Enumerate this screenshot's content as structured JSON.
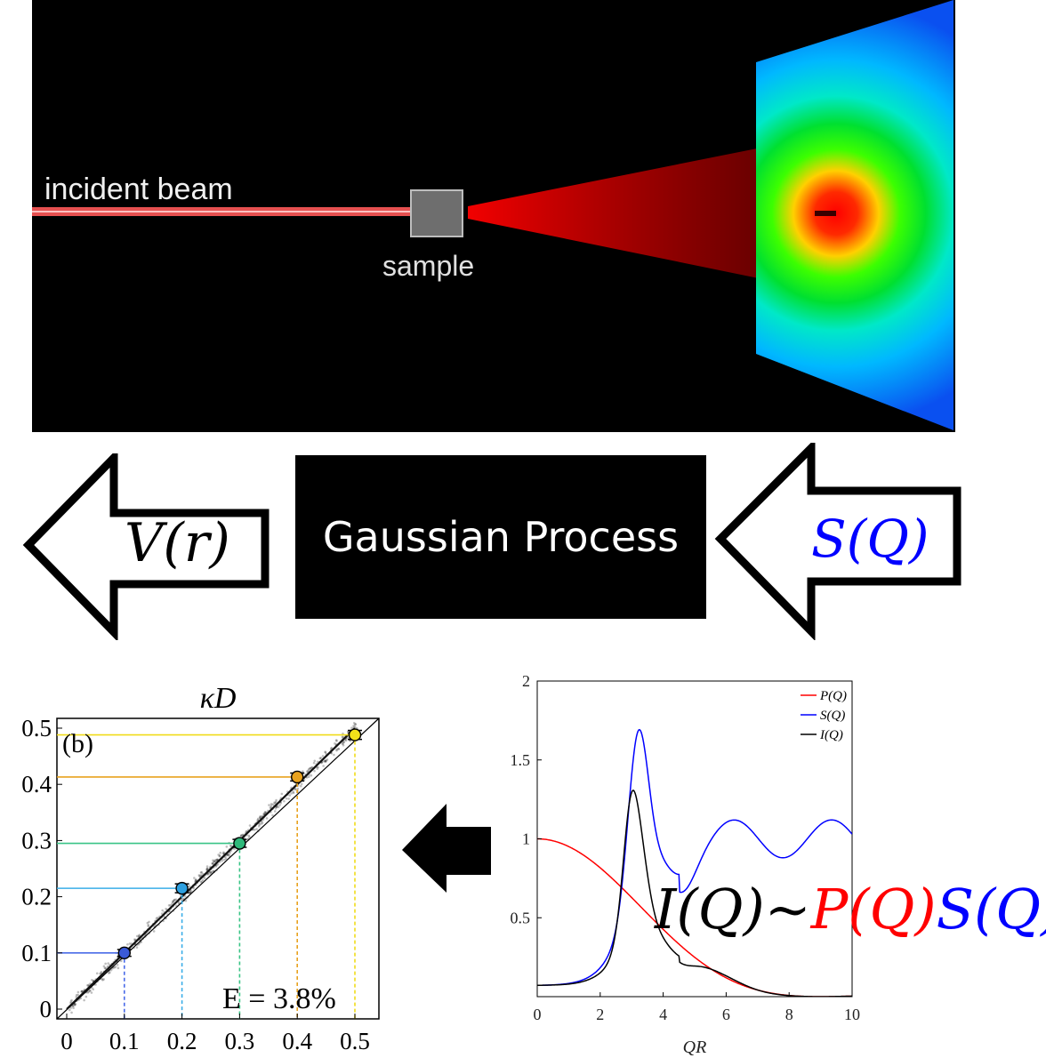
{
  "scattering_panel": {
    "incident_label": "incident beam",
    "sample_label": "sample"
  },
  "gaussian_process": {
    "label": "Gaussian Process"
  },
  "left_arrow": {
    "label": "V(r)"
  },
  "right_arrow": {
    "label": "S(Q)",
    "color": "#0000ff"
  },
  "formula": {
    "parts": [
      {
        "text": "I(Q)~",
        "color": "#000000"
      },
      {
        "text": "P(Q)",
        "color": "#ff0000"
      },
      {
        "text": "S(Q)",
        "color": "#0000ff"
      }
    ]
  },
  "chart_data": [
    {
      "type": "scatter",
      "title": "κD",
      "panel_label": "(b)",
      "annotation": "E = 3.8%",
      "xlim": [
        0,
        0.5
      ],
      "ylim": [
        0,
        0.5
      ],
      "x_ticks": [
        "0",
        "0.1",
        "0.2",
        "0.3",
        "0.4",
        "0.5"
      ],
      "y_ticks": [
        "0",
        "0.1",
        "0.2",
        "0.3",
        "0.4",
        "0.5"
      ],
      "diagonal": true,
      "points": [
        {
          "x": 0.1,
          "y": 0.1,
          "err": 0.006,
          "color": "#3a5ad8",
          "line_color": "#4a6be8"
        },
        {
          "x": 0.2,
          "y": 0.215,
          "err": 0.008,
          "color": "#2ea0e0",
          "line_color": "#3aaee8"
        },
        {
          "x": 0.3,
          "y": 0.295,
          "err": 0.007,
          "color": "#2eb87a",
          "line_color": "#39c486"
        },
        {
          "x": 0.4,
          "y": 0.413,
          "err": 0.007,
          "color": "#e8a21e",
          "line_color": "#e8a21e"
        },
        {
          "x": 0.5,
          "y": 0.488,
          "err": 0.008,
          "color": "#f2e21a",
          "line_color": "#f0dc1a"
        }
      ]
    },
    {
      "type": "line",
      "xlabel": "QR",
      "xlim": [
        0,
        10
      ],
      "ylim": [
        0,
        2
      ],
      "x_ticks": [
        "0",
        "2",
        "4",
        "6",
        "8",
        "10"
      ],
      "y_ticks": [
        "0.5",
        "1",
        "1.5",
        "2"
      ],
      "legend_position": "top-right",
      "series": [
        {
          "name": "P(Q)",
          "color": "#ff0000"
        },
        {
          "name": "S(Q)",
          "color": "#0000ff"
        },
        {
          "name": "I(Q)",
          "color": "#000000"
        }
      ]
    }
  ]
}
